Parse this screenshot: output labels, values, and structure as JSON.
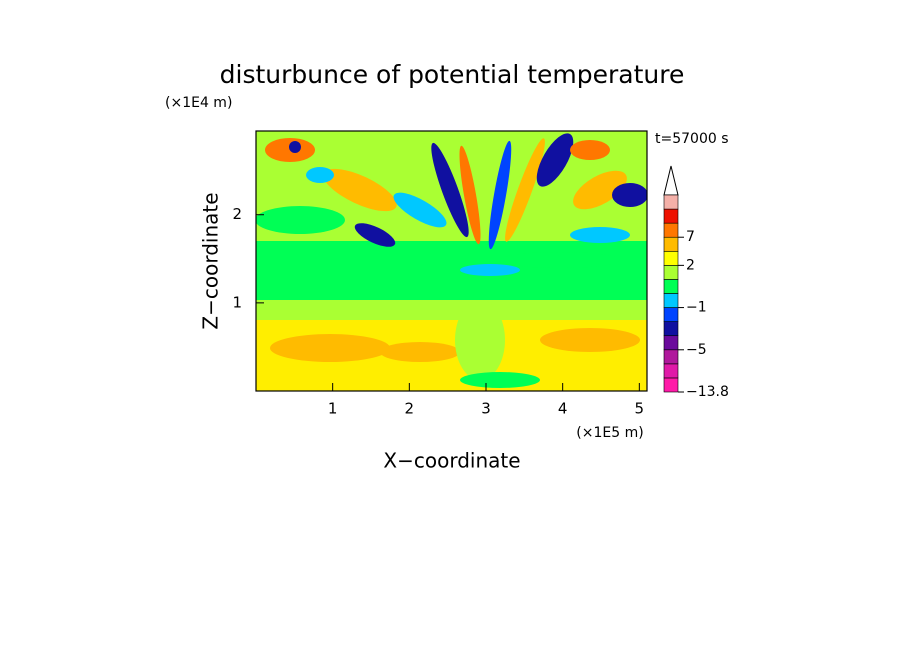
{
  "chart_data": {
    "type": "contour",
    "title": "disturbunce of potential temperature",
    "x_label": "X−coordinate",
    "y_label": "Z−coordinate",
    "x_unit": "(×1E5 m)",
    "y_unit": "(×1E4 m)",
    "annotation": "t=57000 s",
    "xlim": [
      0,
      5.1
    ],
    "ylim": [
      0,
      2.95
    ],
    "xticks": [
      1,
      2,
      3,
      4,
      5
    ],
    "yticks": [
      1,
      2
    ],
    "colorbar": {
      "levels": [
        -13.8,
        -9,
        -7,
        -5,
        -3,
        -2,
        -1,
        0,
        1,
        2,
        4,
        7,
        9,
        11,
        13
      ],
      "colors": [
        "#ff1aa8",
        "#e01aa8",
        "#b0189c",
        "#6b0a9c",
        "#1010a0",
        "#0044ff",
        "#00c8ff",
        "#00ff55",
        "#aaff33",
        "#ffff00",
        "#ffbb00",
        "#ff7700",
        "#ee1100",
        "#f4b0a8"
      ],
      "ticks": [
        {
          "value": -13.8,
          "label": "−13.8"
        },
        {
          "value": -5,
          "label": "−5"
        },
        {
          "value": -1,
          "label": "−1"
        },
        {
          "value": 2,
          "label": "2"
        },
        {
          "value": 7,
          "label": "7"
        }
      ]
    }
  }
}
